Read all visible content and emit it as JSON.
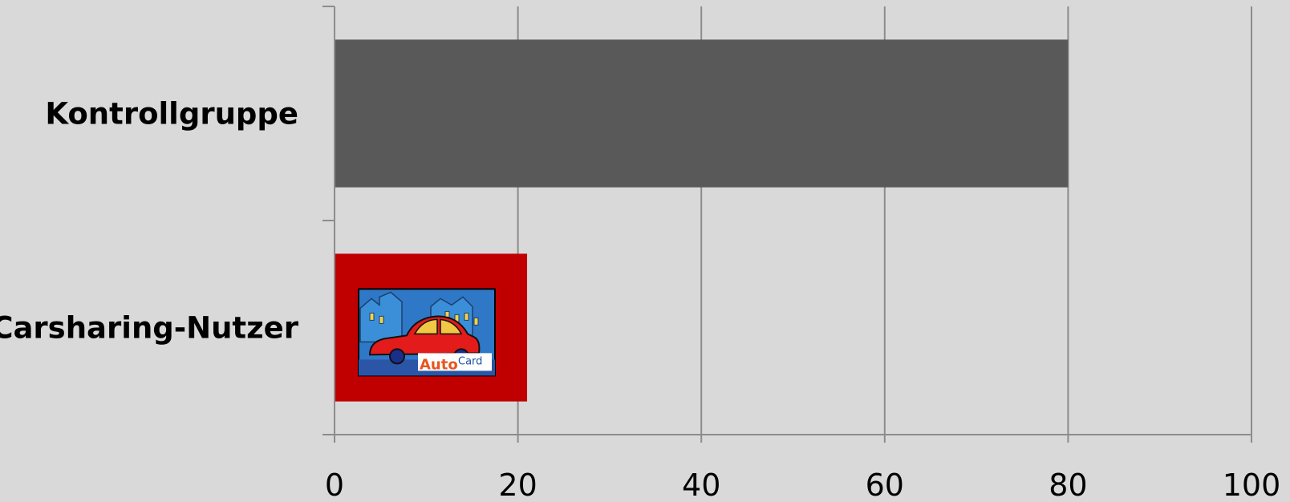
{
  "chart_data": {
    "type": "bar",
    "orientation": "horizontal",
    "categories": [
      "Kontrollgruppe",
      "Carsharing-Nutzer"
    ],
    "values": [
      80,
      21
    ],
    "xlim": [
      0,
      100
    ],
    "xticks": [
      "0",
      "20",
      "40",
      "60",
      "80",
      "100"
    ],
    "grid": true,
    "colors": {
      "background": "#d9d9d9",
      "bars": [
        "#595959",
        "#c00000"
      ],
      "grid": "#8c8c8c"
    },
    "bar_images": [
      null,
      {
        "icon": "autocard-car-icon",
        "text_auto": "Auto",
        "text_card": "Card"
      }
    ]
  }
}
